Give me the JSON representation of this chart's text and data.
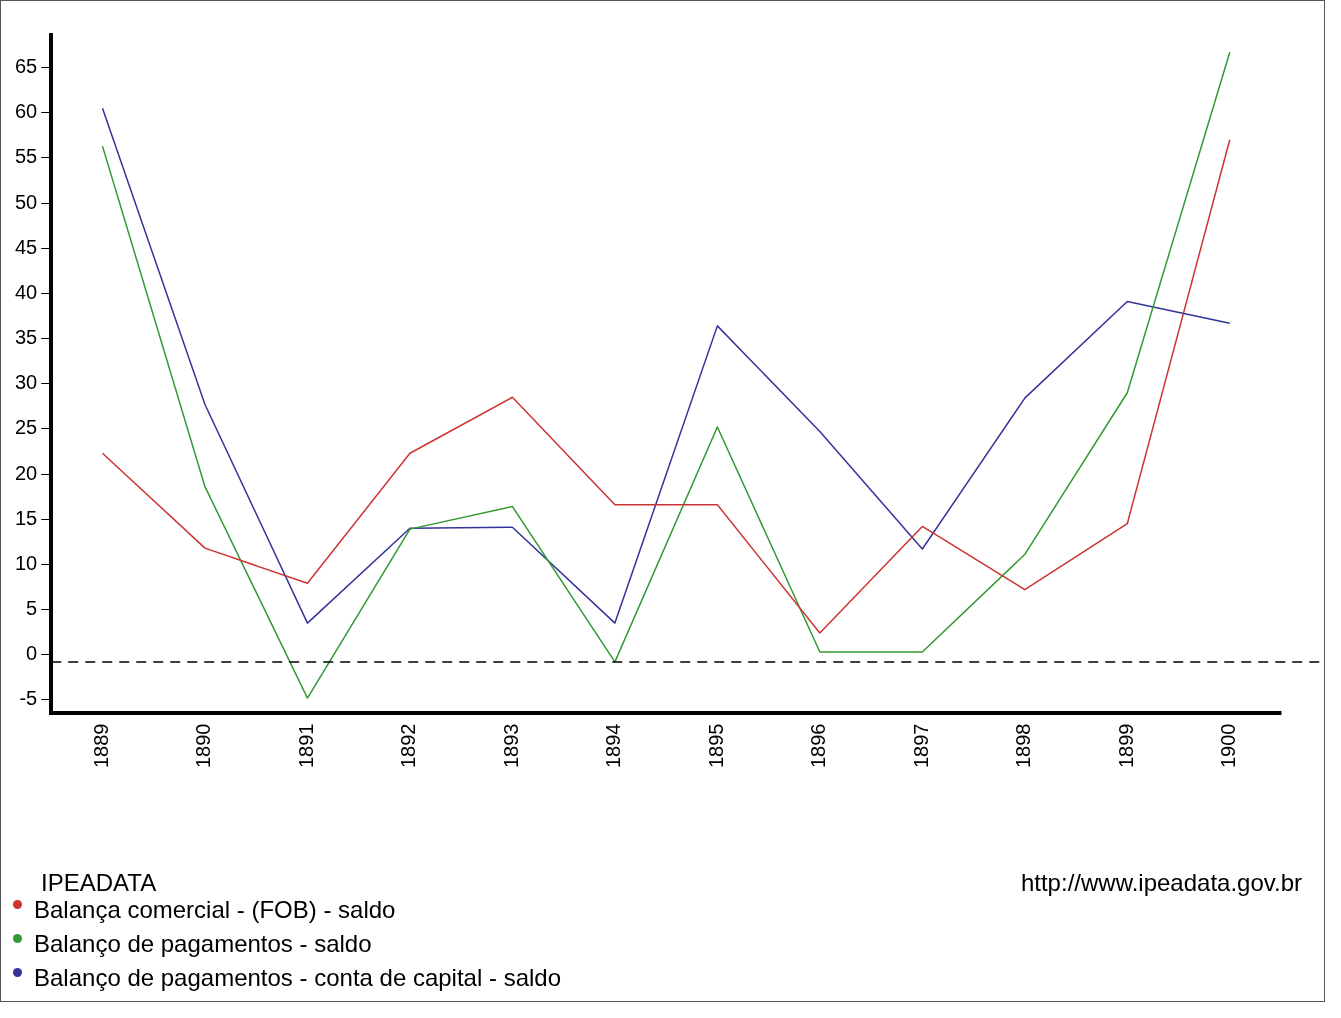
{
  "chart_data": {
    "type": "line",
    "categories": [
      "1889",
      "1890",
      "1891",
      "1892",
      "1893",
      "1894",
      "1895",
      "1896",
      "1897",
      "1898",
      "1899",
      "1900"
    ],
    "series": [
      {
        "name": "Balança comercial - (FOB) - saldo",
        "color": "#cc3333",
        "values": [
          22.3,
          11.8,
          7.9,
          22.3,
          28.5,
          16.6,
          16.6,
          2.4,
          14.2,
          7.2,
          14.5,
          57.0
        ]
      },
      {
        "name": "Balanço de pagamentos - saldo",
        "color": "#339933",
        "values": [
          56.3,
          18.6,
          -4.8,
          13.9,
          16.4,
          -0.8,
          25.2,
          0.3,
          0.3,
          11.1,
          29.0,
          66.7
        ]
      },
      {
        "name": "Balanço de pagamentos - conta de capital - saldo",
        "color": "#333399",
        "values": [
          60.5,
          27.7,
          3.5,
          14.0,
          14.1,
          3.5,
          36.4,
          24.7,
          11.7,
          28.4,
          39.1,
          36.7
        ]
      }
    ],
    "ylim": [
      -6.4,
      68.6
    ],
    "yticks": [
      -5,
      0,
      5,
      10,
      15,
      20,
      25,
      30,
      35,
      40,
      45,
      50,
      55,
      60,
      65
    ],
    "ref_lines": [
      {
        "axis": "y",
        "value": -0.8,
        "color": "#000000",
        "line_style": "dashed"
      }
    ],
    "grid": false,
    "legend": "bottom left",
    "marker": "none",
    "line_style": "solid",
    "annotations": [
      "IPEADATA",
      "http://www.ipeadata.gov.br"
    ]
  }
}
